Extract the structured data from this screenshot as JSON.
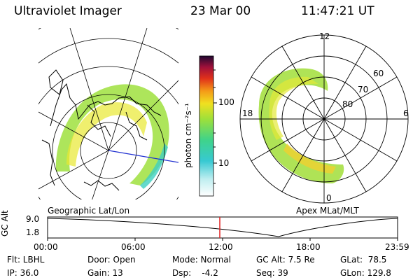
{
  "header": {
    "instrument": "Ultraviolet Imager",
    "date": "23 Mar 00",
    "time": "11:47:21 UT"
  },
  "colorbar": {
    "unit_label": "photon cm⁻²s⁻¹",
    "ticks": [
      "100",
      "10"
    ]
  },
  "geographic_panel": {
    "label": "Geographic Lat/Lon"
  },
  "apex_panel": {
    "label": "Apex MLat/MLT",
    "mlt_labels": {
      "top": "12",
      "left": "18",
      "right": "6",
      "bottom": "0"
    },
    "lat_labels": [
      "60",
      "70",
      "80"
    ]
  },
  "timeline": {
    "ylabel": "GC Alt",
    "y_ticks": [
      "9.0",
      "1.8"
    ],
    "x_ticks": [
      "00:00",
      "06:00",
      "12:00",
      "18:00",
      "23:59"
    ],
    "current_time_fraction": 0.492
  },
  "status": {
    "flt": "Flt: LBHL",
    "ip": "IP: 36.0",
    "door": "Door: Open",
    "gain": "Gain: 13",
    "mode": "Mode: Normal",
    "dsp": "Dsp:    -4.2",
    "gc_alt": "GC Alt: 7.5 Re",
    "seq": "Seq: 39",
    "glat": "GLat:  78.5",
    "glon": "GLon: 129.8"
  }
}
